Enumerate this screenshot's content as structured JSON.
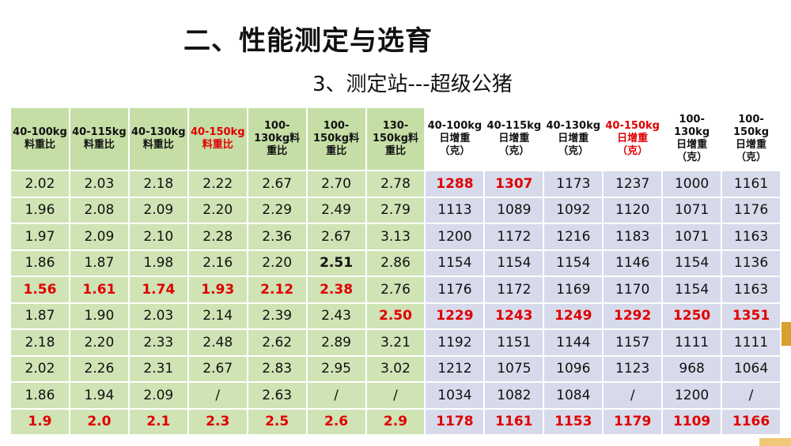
{
  "title": "二、性能测定与选育",
  "subtitle": "3、测定站---超级公猪",
  "headers": [
    {
      "line1": "40-100kg",
      "line2": "料重比",
      "line3": "",
      "red": false
    },
    {
      "line1": "40-115kg",
      "line2": "料重比",
      "line3": "",
      "red": false
    },
    {
      "line1": "40-130kg",
      "line2": "料重比",
      "line3": "",
      "red": false
    },
    {
      "line1": "40-150kg",
      "line2": "料重比",
      "line3": "",
      "red": true
    },
    {
      "line1": "100-",
      "line2": "130kg料",
      "line3": "重比",
      "red": false
    },
    {
      "line1": "100-",
      "line2": "150kg料",
      "line3": "重比",
      "red": false
    },
    {
      "line1": "130-",
      "line2": "150kg料",
      "line3": "重比",
      "red": false
    },
    {
      "line1": "40-100kg",
      "line2": "日增重",
      "line3": "（克）",
      "red": false
    },
    {
      "line1": "40-115kg",
      "line2": "日增重",
      "line3": "（克）",
      "red": false
    },
    {
      "line1": "40-130kg",
      "line2": "日增重",
      "line3": "（克）",
      "red": false
    },
    {
      "line1": "40-150kg",
      "line2": "日增重",
      "line3": "（克）",
      "red": true
    },
    {
      "line1": "100-130kg",
      "line2": "日增重",
      "line3": "（克）",
      "red": false
    },
    {
      "line1": "100-150kg",
      "line2": "日增重",
      "line3": "（克）",
      "red": false
    }
  ],
  "rows": [
    [
      "2.02",
      "2.03",
      "2.18",
      "2.22",
      "2.67",
      "2.70",
      "2.78",
      "1288",
      "1307",
      "1173",
      "1237",
      "1000",
      "1161"
    ],
    [
      "1.96",
      "2.08",
      "2.09",
      "2.20",
      "2.29",
      "2.49",
      "2.79",
      "1113",
      "1089",
      "1092",
      "1120",
      "1071",
      "1176"
    ],
    [
      "1.97",
      "2.09",
      "2.10",
      "2.28",
      "2.36",
      "2.67",
      "3.13",
      "1200",
      "1172",
      "1216",
      "1183",
      "1071",
      "1163"
    ],
    [
      "1.86",
      "1.87",
      "1.98",
      "2.16",
      "2.20",
      "2.51",
      "2.86",
      "1154",
      "1154",
      "1154",
      "1146",
      "1154",
      "1136"
    ],
    [
      "1.56",
      "1.61",
      "1.74",
      "1.93",
      "2.12",
      "2.38",
      "2.76",
      "1176",
      "1172",
      "1169",
      "1170",
      "1154",
      "1163"
    ],
    [
      "1.87",
      "1.90",
      "2.03",
      "2.14",
      "2.39",
      "2.43",
      "2.50",
      "1229",
      "1243",
      "1249",
      "1292",
      "1250",
      "1351"
    ],
    [
      "2.18",
      "2.20",
      "2.33",
      "2.48",
      "2.62",
      "2.89",
      "3.21",
      "1192",
      "1151",
      "1144",
      "1157",
      "1111",
      "1111"
    ],
    [
      "2.02",
      "2.26",
      "2.31",
      "2.67",
      "2.83",
      "2.95",
      "3.02",
      "1212",
      "1075",
      "1096",
      "1123",
      "968",
      "1064"
    ],
    [
      "1.86",
      "1.94",
      "2.09",
      "/",
      "2.63",
      "/",
      "/",
      "1034",
      "1082",
      "1084",
      "/",
      "1200",
      "/"
    ],
    [
      "1.9",
      "2.0",
      "2.1",
      "2.3",
      "2.5",
      "2.6",
      "2.9",
      "1178",
      "1161",
      "1153",
      "1179",
      "1109",
      "1166"
    ]
  ],
  "highlight": {
    "red_cells": [
      [
        0,
        7
      ],
      [
        0,
        8
      ],
      [
        4,
        0
      ],
      [
        4,
        1
      ],
      [
        4,
        2
      ],
      [
        4,
        3
      ],
      [
        4,
        4
      ],
      [
        4,
        5
      ],
      [
        5,
        6
      ],
      [
        5,
        7
      ],
      [
        5,
        8
      ],
      [
        5,
        9
      ],
      [
        5,
        10
      ],
      [
        5,
        11
      ],
      [
        5,
        12
      ],
      [
        9,
        0
      ],
      [
        9,
        1
      ],
      [
        9,
        2
      ],
      [
        9,
        3
      ],
      [
        9,
        4
      ],
      [
        9,
        5
      ],
      [
        9,
        6
      ],
      [
        9,
        7
      ],
      [
        9,
        8
      ],
      [
        9,
        9
      ],
      [
        9,
        10
      ],
      [
        9,
        11
      ],
      [
        9,
        12
      ]
    ],
    "bold_cells": [
      [
        3,
        5
      ]
    ],
    "red_color": "#e00000",
    "green_bg": "#cfe3b4",
    "blue_bg": "#d7daea"
  }
}
